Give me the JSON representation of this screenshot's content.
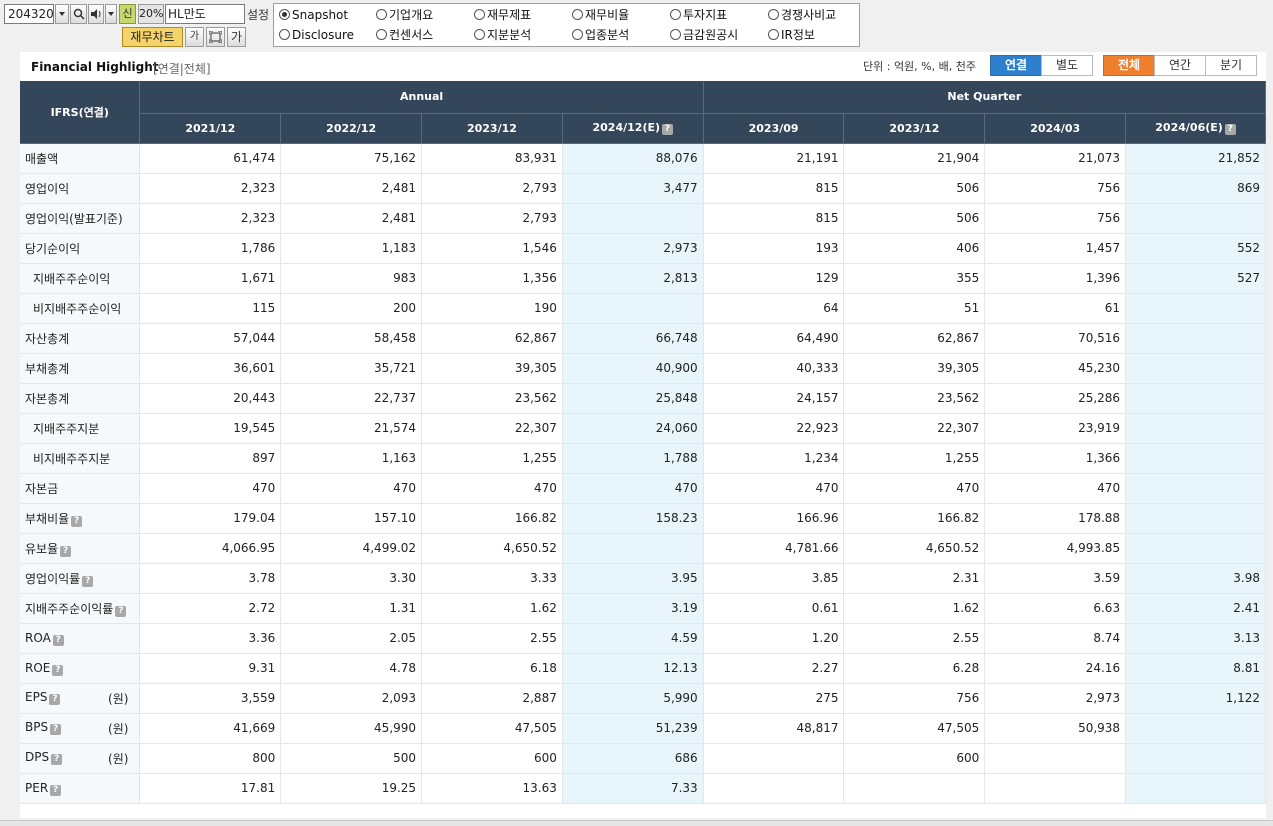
{
  "toolbar": {
    "stock_code": "204320",
    "sin_label": "신",
    "pct_label": "20%",
    "company_name": "HL만도",
    "settings_label": "설정",
    "chart_button": "재무차트",
    "font_small": "가",
    "font_large": "가"
  },
  "menu": [
    {
      "label": "Snapshot",
      "selected": true
    },
    {
      "label": "기업개요",
      "selected": false
    },
    {
      "label": "재무제표",
      "selected": false
    },
    {
      "label": "재무비율",
      "selected": false
    },
    {
      "label": "투자지표",
      "selected": false
    },
    {
      "label": "경쟁사비교",
      "selected": false
    },
    {
      "label": "Disclosure",
      "selected": false
    },
    {
      "label": "컨센서스",
      "selected": false
    },
    {
      "label": "지분분석",
      "selected": false
    },
    {
      "label": "업종분석",
      "selected": false
    },
    {
      "label": "금감원공시",
      "selected": false
    },
    {
      "label": "IR정보",
      "selected": false
    }
  ],
  "highlight": {
    "title": "Financial Highlight",
    "subtitle": "[연결|전체]",
    "unit_label": "단위 : 억원, %, 배, 천주",
    "toggle_left": [
      "연결",
      "별도"
    ],
    "toggle_right": [
      "전체",
      "연간",
      "분기"
    ]
  },
  "table": {
    "corner": "IFRS(연결)",
    "group_annual": "Annual",
    "group_quarter": "Net Quarter",
    "columns": [
      {
        "label": "2021/12",
        "est": false
      },
      {
        "label": "2022/12",
        "est": false
      },
      {
        "label": "2023/12",
        "est": false
      },
      {
        "label": "2024/12(E)",
        "est": true
      },
      {
        "label": "2023/09",
        "est": false
      },
      {
        "label": "2023/12",
        "est": false
      },
      {
        "label": "2024/03",
        "est": false
      },
      {
        "label": "2024/06(E)",
        "est": true
      }
    ],
    "rows": [
      {
        "label": "매출액",
        "indent": false,
        "help": false,
        "unit": "",
        "values": [
          "61,474",
          "75,162",
          "83,931",
          "88,076",
          "21,191",
          "21,904",
          "21,073",
          "21,852"
        ]
      },
      {
        "label": "영업이익",
        "indent": false,
        "help": false,
        "unit": "",
        "values": [
          "2,323",
          "2,481",
          "2,793",
          "3,477",
          "815",
          "506",
          "756",
          "869"
        ]
      },
      {
        "label": "영업이익(발표기준)",
        "indent": false,
        "help": false,
        "unit": "",
        "values": [
          "2,323",
          "2,481",
          "2,793",
          "",
          "815",
          "506",
          "756",
          ""
        ]
      },
      {
        "label": "당기순이익",
        "indent": false,
        "help": false,
        "unit": "",
        "values": [
          "1,786",
          "1,183",
          "1,546",
          "2,973",
          "193",
          "406",
          "1,457",
          "552"
        ]
      },
      {
        "label": "지배주주순이익",
        "indent": true,
        "help": false,
        "unit": "",
        "values": [
          "1,671",
          "983",
          "1,356",
          "2,813",
          "129",
          "355",
          "1,396",
          "527"
        ]
      },
      {
        "label": "비지배주주순이익",
        "indent": true,
        "help": false,
        "unit": "",
        "values": [
          "115",
          "200",
          "190",
          "",
          "64",
          "51",
          "61",
          ""
        ]
      },
      {
        "label": "자산총계",
        "indent": false,
        "help": false,
        "unit": "",
        "values": [
          "57,044",
          "58,458",
          "62,867",
          "66,748",
          "64,490",
          "62,867",
          "70,516",
          ""
        ]
      },
      {
        "label": "부채총계",
        "indent": false,
        "help": false,
        "unit": "",
        "values": [
          "36,601",
          "35,721",
          "39,305",
          "40,900",
          "40,333",
          "39,305",
          "45,230",
          ""
        ]
      },
      {
        "label": "자본총계",
        "indent": false,
        "help": false,
        "unit": "",
        "values": [
          "20,443",
          "22,737",
          "23,562",
          "25,848",
          "24,157",
          "23,562",
          "25,286",
          ""
        ]
      },
      {
        "label": "지배주주지분",
        "indent": true,
        "help": false,
        "unit": "",
        "values": [
          "19,545",
          "21,574",
          "22,307",
          "24,060",
          "22,923",
          "22,307",
          "23,919",
          ""
        ]
      },
      {
        "label": "비지배주주지분",
        "indent": true,
        "help": false,
        "unit": "",
        "values": [
          "897",
          "1,163",
          "1,255",
          "1,788",
          "1,234",
          "1,255",
          "1,366",
          ""
        ]
      },
      {
        "label": "자본금",
        "indent": false,
        "help": false,
        "unit": "",
        "values": [
          "470",
          "470",
          "470",
          "470",
          "470",
          "470",
          "470",
          ""
        ]
      },
      {
        "label": "부채비율",
        "indent": false,
        "help": true,
        "unit": "",
        "values": [
          "179.04",
          "157.10",
          "166.82",
          "158.23",
          "166.96",
          "166.82",
          "178.88",
          ""
        ]
      },
      {
        "label": "유보율",
        "indent": false,
        "help": true,
        "unit": "",
        "values": [
          "4,066.95",
          "4,499.02",
          "4,650.52",
          "",
          "4,781.66",
          "4,650.52",
          "4,993.85",
          ""
        ]
      },
      {
        "label": "영업이익률",
        "indent": false,
        "help": true,
        "unit": "",
        "values": [
          "3.78",
          "3.30",
          "3.33",
          "3.95",
          "3.85",
          "2.31",
          "3.59",
          "3.98"
        ]
      },
      {
        "label": "지배주주순이익률",
        "indent": false,
        "help": true,
        "unit": "",
        "values": [
          "2.72",
          "1.31",
          "1.62",
          "3.19",
          "0.61",
          "1.62",
          "6.63",
          "2.41"
        ]
      },
      {
        "label": "ROA",
        "indent": false,
        "help": true,
        "unit": "",
        "values": [
          "3.36",
          "2.05",
          "2.55",
          "4.59",
          "1.20",
          "2.55",
          "8.74",
          "3.13"
        ]
      },
      {
        "label": "ROE",
        "indent": false,
        "help": true,
        "unit": "",
        "values": [
          "9.31",
          "4.78",
          "6.18",
          "12.13",
          "2.27",
          "6.28",
          "24.16",
          "8.81"
        ]
      },
      {
        "label": "EPS",
        "indent": false,
        "help": true,
        "unit": "(원)",
        "values": [
          "3,559",
          "2,093",
          "2,887",
          "5,990",
          "275",
          "756",
          "2,973",
          "1,122"
        ]
      },
      {
        "label": "BPS",
        "indent": false,
        "help": true,
        "unit": "(원)",
        "values": [
          "41,669",
          "45,990",
          "47,505",
          "51,239",
          "48,817",
          "47,505",
          "50,938",
          ""
        ]
      },
      {
        "label": "DPS",
        "indent": false,
        "help": true,
        "unit": "(원)",
        "values": [
          "800",
          "500",
          "600",
          "686",
          "",
          "600",
          "",
          ""
        ]
      },
      {
        "label": "PER",
        "indent": false,
        "help": true,
        "unit": "",
        "values": [
          "17.81",
          "19.25",
          "13.63",
          "7.33",
          "",
          "",
          "",
          ""
        ]
      }
    ]
  },
  "icons": {
    "dropdown": "chevron-down-icon",
    "search": "search-icon",
    "speaker": "speaker-icon",
    "help": "question-icon",
    "capture": "capture-icon"
  }
}
